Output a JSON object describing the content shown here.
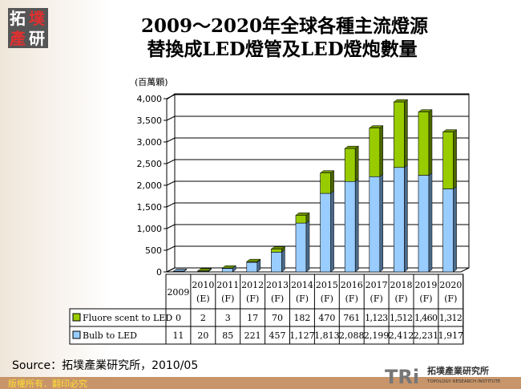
{
  "logo": {
    "chars": [
      "拓",
      "墣",
      "產",
      "研"
    ]
  },
  "title_line1": "2009～2020年全球各種主流燈源",
  "title_line2": "替換成LED燈管及LED燈炮數量",
  "source": "Source：拓墣產業研究所，2010/05",
  "footer": {
    "copyright": "版權所有．翻印必究",
    "brand": "TRi",
    "brand_cn": "拓墣產業研究所",
    "brand_en": "TOPOLOGY RESEARCH INSTITUTE"
  },
  "colors": {
    "fluorescent": "#99cc00",
    "bulb": "#99ccff",
    "footer_bar": "#c8956a"
  },
  "chart_data": {
    "type": "bar",
    "stacked": true,
    "unit_label": "(百萬顆)",
    "categories": [
      "2009",
      "2010 (E)",
      "2011 (F)",
      "2012 (F)",
      "2013 (F)",
      "2014 (F)",
      "2015 (F)",
      "2016 (F)",
      "2017 (F)",
      "2018 (F)",
      "2019 (F)",
      "2020 (F)"
    ],
    "category_years": [
      "2009",
      "2010",
      "2011",
      "2012",
      "2013",
      "2014",
      "2015",
      "2016",
      "2017",
      "2018",
      "2019",
      "2020"
    ],
    "category_tags": [
      "",
      "(E)",
      "(F)",
      "(F)",
      "(F)",
      "(F)",
      "(F)",
      "(F)",
      "(F)",
      "(F)",
      "(F)",
      "(F)"
    ],
    "series": [
      {
        "name": "Bulb to LED",
        "values": [
          11,
          20,
          85,
          221,
          457,
          1127,
          1813,
          2088,
          2199,
          2412,
          2231,
          1917
        ],
        "labels": [
          "11",
          "20",
          "85",
          "221",
          "457",
          "1,127",
          "1,813",
          "2,088",
          "2,199",
          "2,412",
          "2,231",
          "1,917"
        ]
      },
      {
        "name": "Fluore scent to LED",
        "values": [
          0,
          2,
          3,
          17,
          70,
          182,
          470,
          761,
          1123,
          1512,
          1460,
          1312
        ],
        "labels": [
          "0",
          "2",
          "3",
          "17",
          "70",
          "182",
          "470",
          "761",
          "1,123",
          "1,512",
          "1,460",
          "1,312"
        ]
      }
    ],
    "ylim": [
      0,
      4000
    ],
    "yticks": [
      "0",
      "500",
      "1,000",
      "1,500",
      "2,000",
      "2,500",
      "3,000",
      "3,500",
      "4,000"
    ],
    "grid": true,
    "legend": "data-table"
  }
}
